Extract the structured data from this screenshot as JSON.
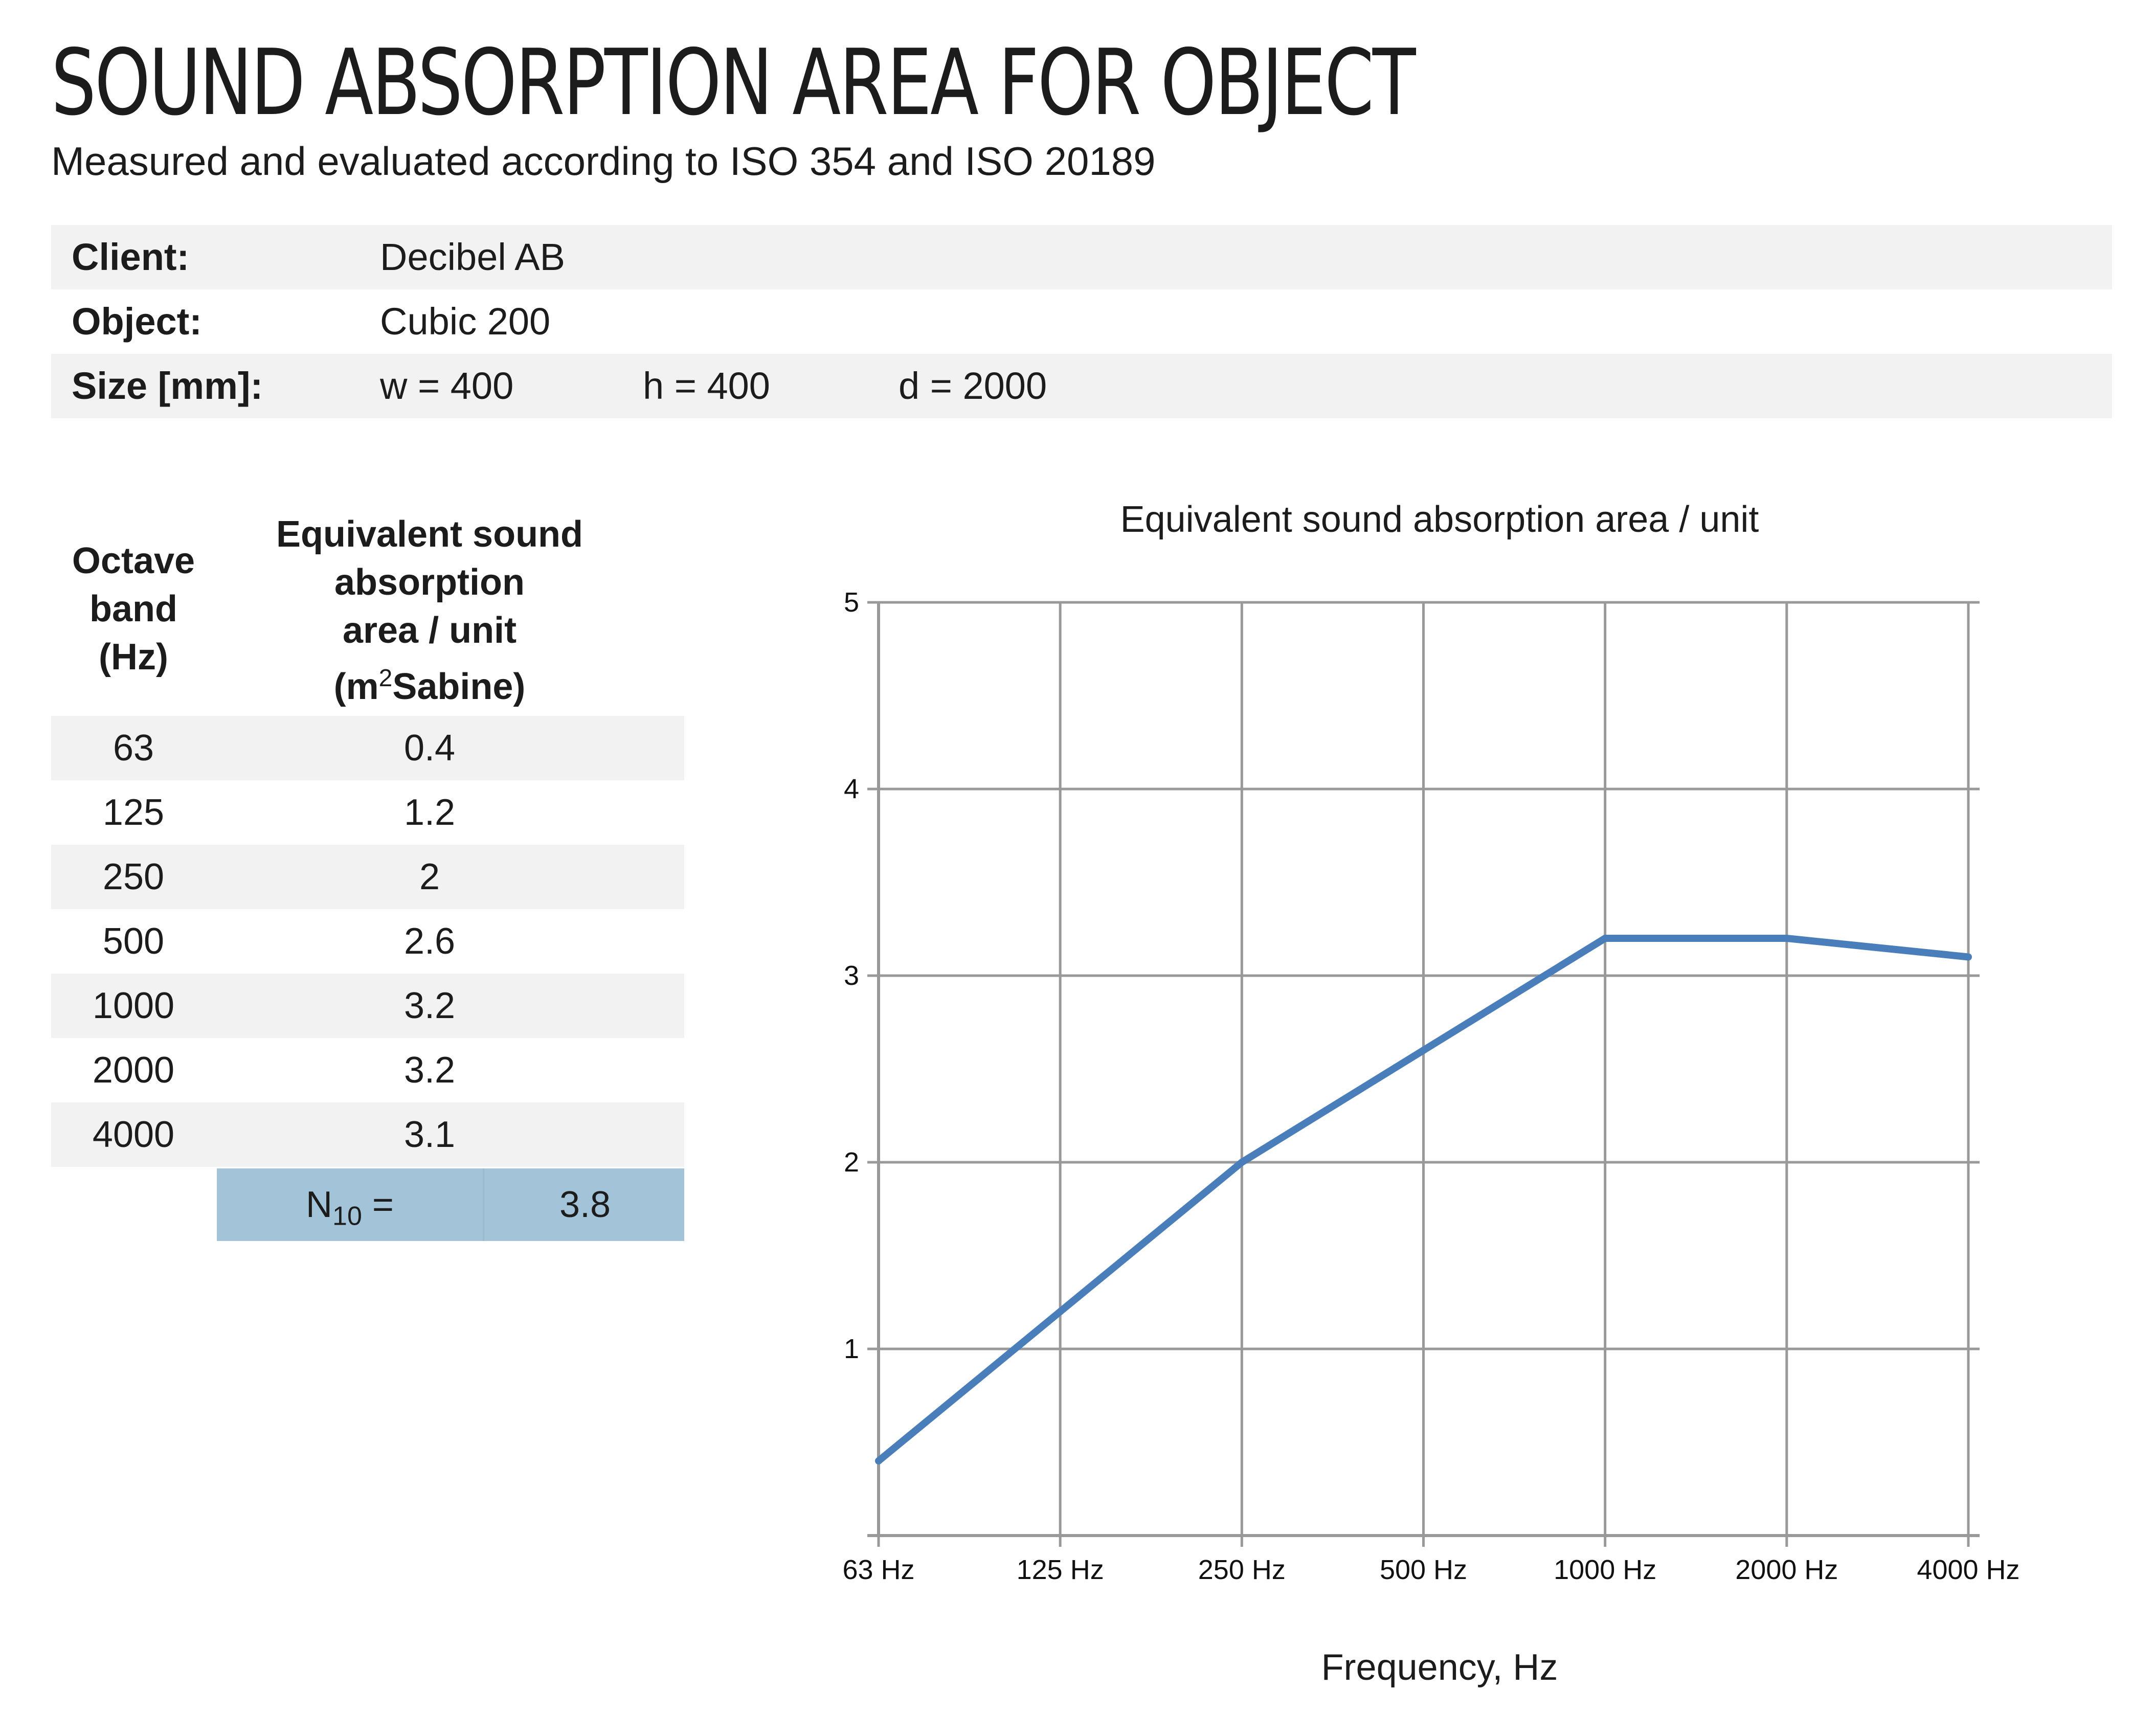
{
  "header": {
    "title": "SOUND ABSORPTION AREA FOR OBJECT",
    "subtitle": "Measured and evaluated according to ISO 354 and ISO 20189"
  },
  "info": {
    "client_label": "Client:",
    "client_value": "Decibel AB",
    "object_label": "Object:",
    "object_value": "Cubic 200",
    "size_label": "Size [mm]:",
    "size_w": "w = 400",
    "size_h": "h = 400",
    "size_d": "d = 2000"
  },
  "table": {
    "header_band": [
      "Octave",
      "band",
      "(Hz)"
    ],
    "header_value_lines": [
      "Equivalent sound",
      "absorption",
      "area / unit"
    ],
    "header_unit_m": "(m",
    "header_unit_sup": "2",
    "header_unit_rest": "Sabine)",
    "rows": [
      {
        "band": "63",
        "value": "0.4"
      },
      {
        "band": "125",
        "value": "1.2"
      },
      {
        "band": "250",
        "value": "2"
      },
      {
        "band": "500",
        "value": "2.6"
      },
      {
        "band": "1000",
        "value": "3.2"
      },
      {
        "band": "2000",
        "value": "3.2"
      },
      {
        "band": "4000",
        "value": "3.1"
      }
    ],
    "n10_label": "N",
    "n10_sub": "10",
    "n10_eq": " =",
    "n10_value": "3.8"
  },
  "chart_data": {
    "type": "line",
    "title": "Equivalent sound absorption area / unit",
    "xlabel": "Frequency, Hz",
    "ylabel": "",
    "categories": [
      "63 Hz",
      "125 Hz",
      "250 Hz",
      "500 Hz",
      "1000 Hz",
      "2000 Hz",
      "4000 Hz"
    ],
    "series": [
      {
        "values": [
          0.4,
          1.2,
          2.0,
          2.6,
          3.2,
          3.2,
          3.1
        ]
      }
    ],
    "ylim": [
      0,
      5
    ],
    "yticks": [
      1,
      2,
      3,
      4,
      5
    ],
    "grid": true,
    "line_color": "#4a7ebb",
    "grid_color": "#999999"
  }
}
